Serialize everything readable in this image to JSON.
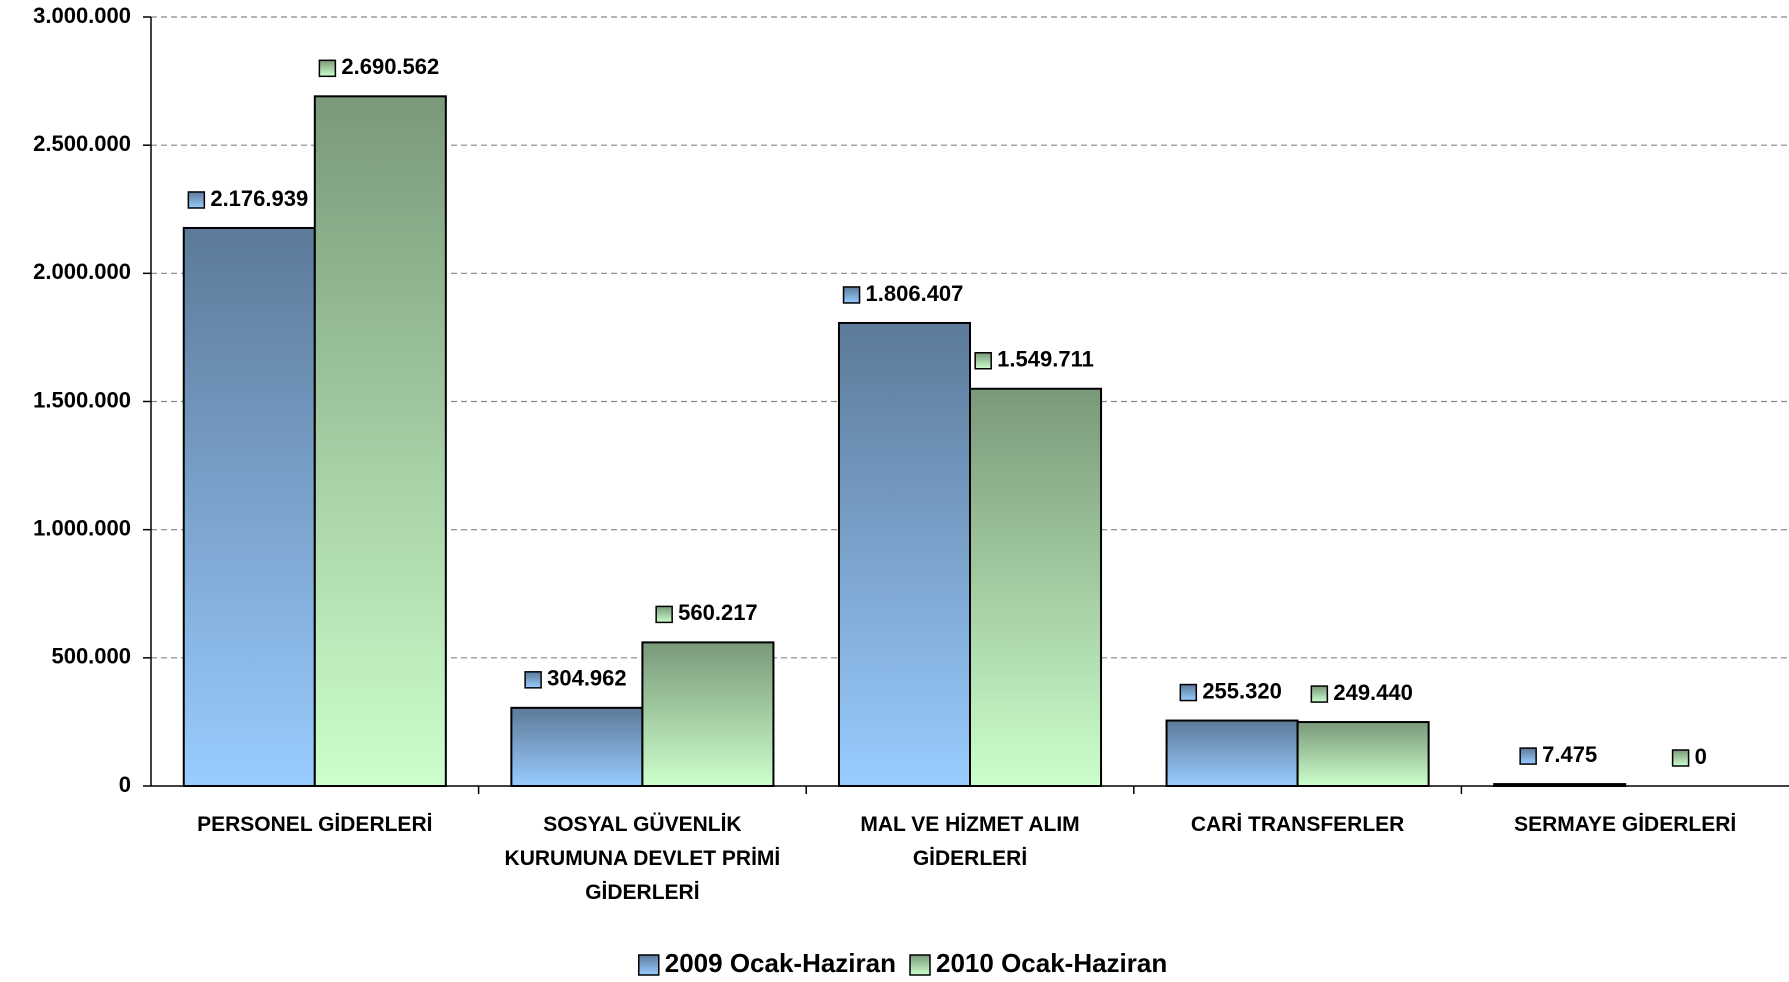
{
  "chart_data": {
    "type": "bar",
    "categories": [
      "PERSONEL GİDERLERİ",
      "SOSYAL GÜVENLİK KURUMUNA DEVLET PRİMİ GİDERLERİ",
      "MAL VE HİZMET ALIM GİDERLERİ",
      "CARİ TRANSFERLER",
      "SERMAYE GİDERLERİ"
    ],
    "series": [
      {
        "name": "2009 Ocak-Haziran",
        "color": "#99ccff",
        "values": [
          2176939,
          304962,
          1806407,
          255320,
          7475
        ],
        "value_labels": [
          "2.176.939",
          "304.962",
          "1.806.407",
          "255.320",
          "7.475"
        ]
      },
      {
        "name": "2010 Ocak-Haziran",
        "color": "#ccffcc",
        "values": [
          2690562,
          560217,
          1549711,
          249440,
          0
        ],
        "value_labels": [
          "2.690.562",
          "560.217",
          "1.549.711",
          "249.440",
          "0"
        ]
      }
    ],
    "ylim": [
      0,
      3000000
    ],
    "yticks": [
      0,
      {
        "value": 500000,
        "label": "500.000"
      },
      {
        "value": 1000000,
        "label": "1.000.000"
      },
      {
        "value": 1500000,
        "label": "1.500.000"
      },
      {
        "value": 2000000,
        "label": "2.000.000"
      },
      {
        "value": 2500000,
        "label": "2.500.000"
      },
      {
        "value": 3000000,
        "label": "3.000.000"
      }
    ],
    "grid": true,
    "legend": "bottom"
  }
}
